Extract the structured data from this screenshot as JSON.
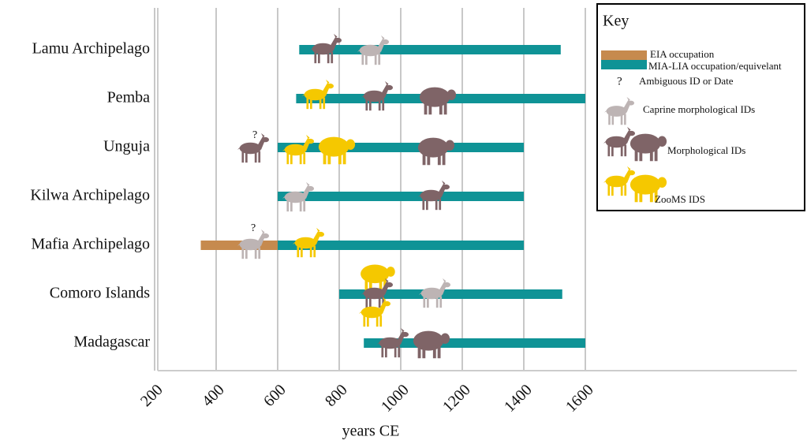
{
  "chart_data": {
    "type": "range",
    "x_label": "years CE",
    "categories": [
      "Lamu Archipelago",
      "Pemba",
      "Unguja",
      "Kilwa Archipelago",
      "Mafia Archipelago",
      "Comoro Islands",
      "Madagascar"
    ],
    "series": [
      {
        "name": "EIA occupation",
        "color": "#c68a4e",
        "start": [
          null,
          null,
          null,
          null,
          350,
          null,
          null
        ],
        "end": [
          null,
          null,
          null,
          null,
          600,
          null,
          null
        ]
      },
      {
        "name": "MIA-LIA occupation/equivelant",
        "color": "#0f9396",
        "start": [
          670,
          660,
          600,
          600,
          600,
          800,
          880
        ],
        "end": [
          1520,
          1600,
          1400,
          1400,
          1400,
          1525,
          1600
        ]
      }
    ],
    "xlim": [
      200,
      1600
    ],
    "xticks": [
      200,
      400,
      600,
      800,
      1000,
      1200,
      1400,
      1600
    ],
    "grid": true,
    "legend_title": "Key",
    "key_notes": [
      "?",
      "Ambiguous ID or Date",
      "Caprine morphological IDs",
      "Morphological IDs",
      "ZooMS IDS"
    ]
  }
}
